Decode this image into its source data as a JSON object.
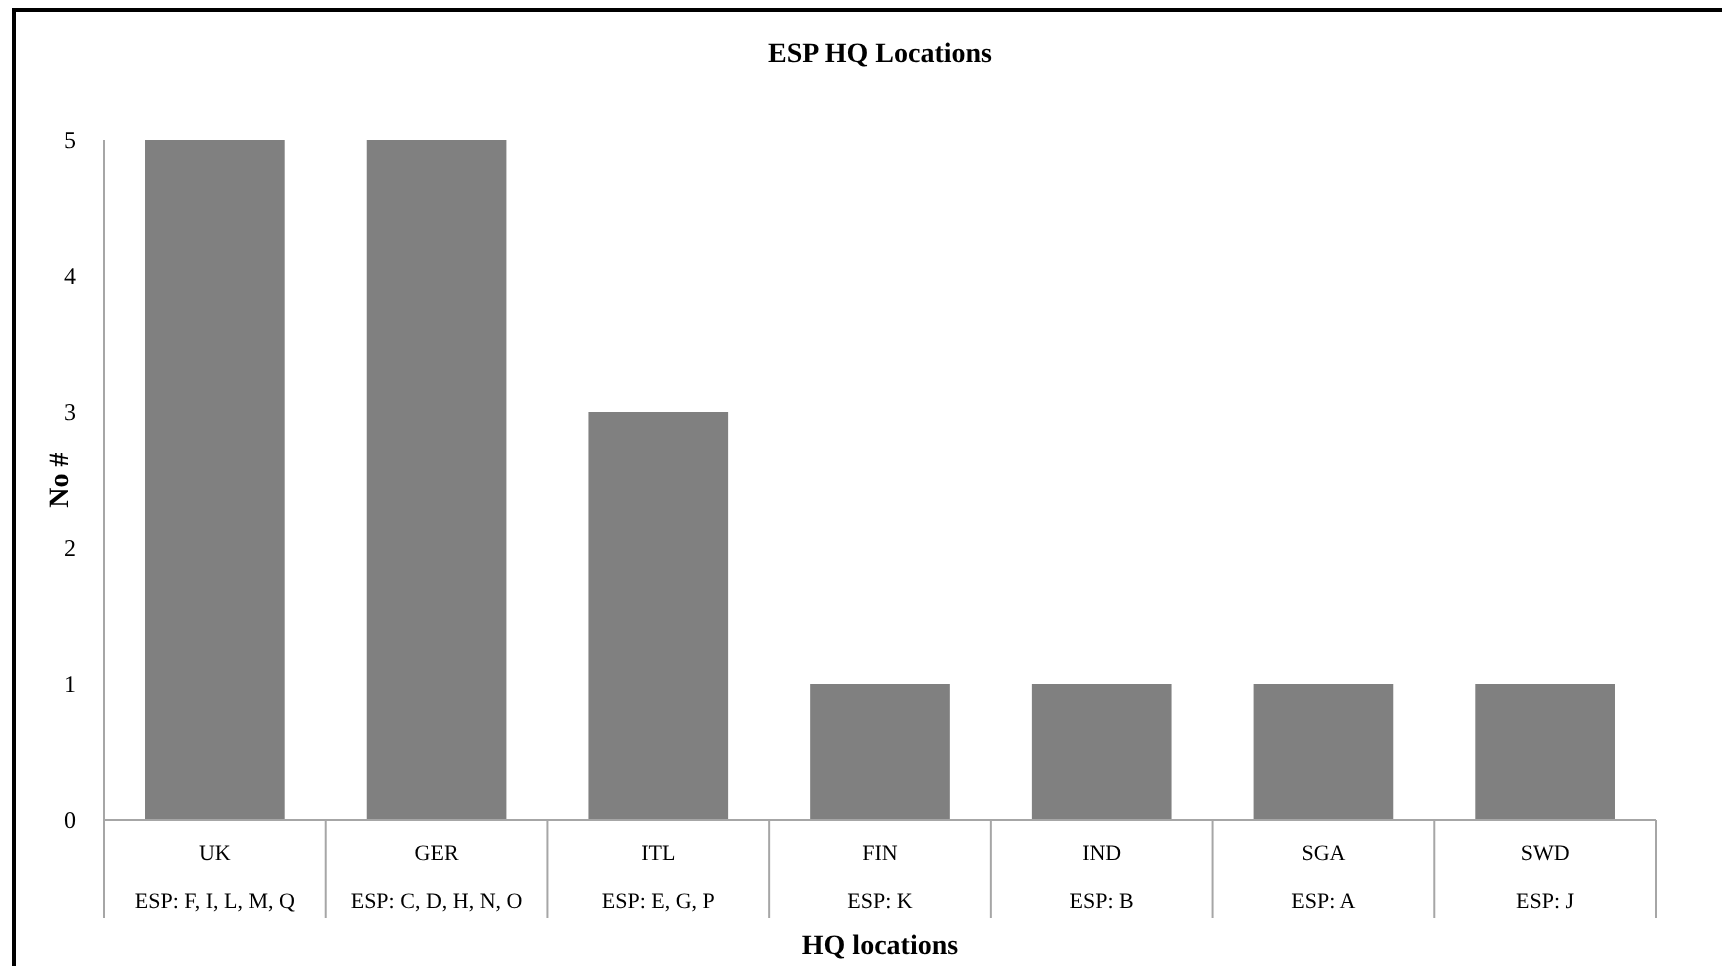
{
  "chart_data": {
    "type": "bar",
    "title": "ESP HQ Locations",
    "xlabel": "HQ locations",
    "ylabel": "No #",
    "categories": [
      "UK\nESP: F, I, L, M, Q",
      "GER\nESP: C, D, H, N, O",
      "ITL\nESP: E, G, P",
      "FIN\nESP: K",
      "IND\nESP: B",
      "SGA\nESP: A",
      "SWD\nESP: J"
    ],
    "values": [
      5,
      5,
      3,
      1,
      1,
      1,
      1
    ],
    "color": "#808080",
    "ylim": [
      0,
      5
    ],
    "yticks": [
      0,
      1,
      2,
      3,
      4,
      5
    ],
    "grid": false
  }
}
